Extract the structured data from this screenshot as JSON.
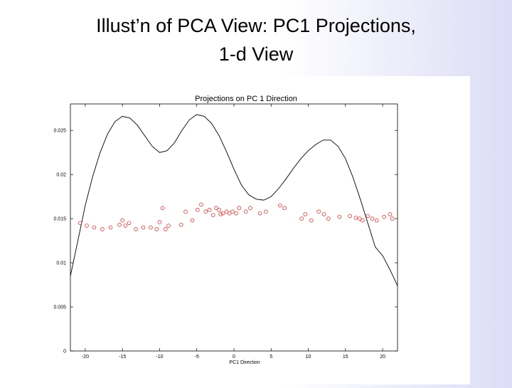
{
  "slide": {
    "title_line1": "Illust’n of PCA View:    PC1 Projections,",
    "title_line2": "1-d View"
  },
  "chart_data": {
    "type": "scatter",
    "title": "Projections on PC 1 Direction",
    "xlabel": "PC1 Direction",
    "ylabel": "",
    "xlim": [
      -22,
      22
    ],
    "ylim": [
      0,
      0.028
    ],
    "xticks": [
      -20,
      -15,
      -10,
      -5,
      0,
      5,
      10,
      15,
      20
    ],
    "yticks": [
      0,
      0.005,
      0.01,
      0.015,
      0.02,
      0.025
    ],
    "xtick_labels": [
      "-20",
      "-15",
      "-10",
      "-5",
      "0",
      "5",
      "10",
      "15",
      "20"
    ],
    "ytick_labels": [
      "0",
      "0.005",
      "0.01",
      "0.015",
      "0.02",
      "0.025"
    ],
    "grid": false,
    "colors": {
      "density_line": "#000000",
      "points": "#cc3333",
      "frame": "#000000"
    },
    "series": [
      {
        "kind": "line",
        "x": [
          -22,
          -21,
          -20,
          -19,
          -18,
          -17,
          -16,
          -15,
          -14,
          -13,
          -12,
          -11,
          -10,
          -9,
          -8,
          -7,
          -6,
          -5,
          -4,
          -3,
          -2,
          -1,
          0,
          1,
          2,
          3,
          4,
          5,
          6,
          7,
          8,
          9,
          10,
          11,
          12,
          13,
          14,
          15,
          16,
          17,
          18,
          19,
          20,
          21,
          22
        ],
        "y": [
          0.0085,
          0.0125,
          0.0165,
          0.0198,
          0.0225,
          0.0246,
          0.026,
          0.0266,
          0.0264,
          0.0256,
          0.0244,
          0.0232,
          0.0225,
          0.0227,
          0.0236,
          0.025,
          0.0262,
          0.0268,
          0.0266,
          0.0258,
          0.0244,
          0.0226,
          0.0206,
          0.0188,
          0.0177,
          0.0172,
          0.0171,
          0.0175,
          0.0184,
          0.0195,
          0.0207,
          0.0218,
          0.0227,
          0.0234,
          0.0239,
          0.0239,
          0.0232,
          0.0218,
          0.0197,
          0.0172,
          0.0145,
          0.0118,
          0.0108,
          0.0092,
          0.0074
        ]
      },
      {
        "kind": "scatter",
        "x": [
          -20.7,
          -19.8,
          -18.8,
          -17.7,
          -16.6,
          -15.4,
          -15.0,
          -14.6,
          -14.1,
          -13.2,
          -12.2,
          -11.2,
          -10.4,
          -10.0,
          -9.6,
          -9.2,
          -8.8,
          -7.1,
          -6.5,
          -5.6,
          -4.9,
          -4.4,
          -3.8,
          -3.3,
          -2.8,
          -2.4,
          -2.0,
          -1.8,
          -1.5,
          -1.0,
          -0.6,
          -0.2,
          0.3,
          0.7,
          1.6,
          2.2,
          3.5,
          4.3,
          6.2,
          6.8,
          9.1,
          9.6,
          10.4,
          11.4,
          12.1,
          12.7,
          14.2,
          15.6,
          16.4,
          16.9,
          17.3,
          18.0,
          18.6,
          19.2,
          20.2,
          21.0,
          21.3
        ],
        "y": [
          0.0145,
          0.0142,
          0.014,
          0.0138,
          0.014,
          0.0143,
          0.0148,
          0.0142,
          0.0145,
          0.0138,
          0.014,
          0.014,
          0.0138,
          0.0146,
          0.0162,
          0.0138,
          0.0142,
          0.0143,
          0.0158,
          0.0148,
          0.016,
          0.0166,
          0.0158,
          0.016,
          0.0154,
          0.0162,
          0.016,
          0.0155,
          0.0156,
          0.0158,
          0.0156,
          0.0158,
          0.0156,
          0.0162,
          0.0158,
          0.0162,
          0.0156,
          0.0158,
          0.0165,
          0.0162,
          0.015,
          0.0155,
          0.0148,
          0.0158,
          0.0155,
          0.015,
          0.0152,
          0.0153,
          0.0151,
          0.015,
          0.0148,
          0.0153,
          0.015,
          0.0148,
          0.0152,
          0.0155,
          0.015
        ]
      }
    ]
  }
}
